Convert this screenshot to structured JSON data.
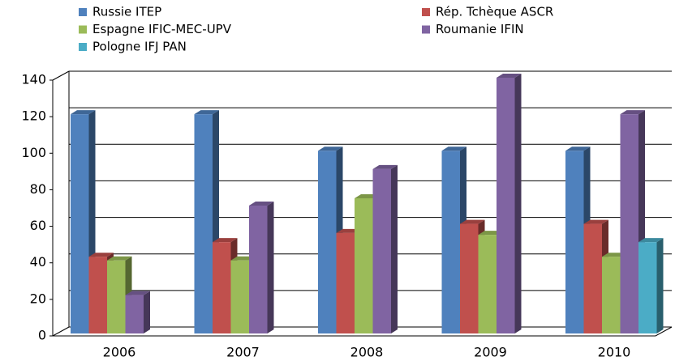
{
  "chart_data": {
    "type": "bar3d",
    "categories": [
      "2006",
      "2007",
      "2008",
      "2009",
      "2010"
    ],
    "series": [
      {
        "name": "Russie ITEP",
        "color": "#4f81bd",
        "values": [
          120,
          120,
          100,
          100,
          100
        ]
      },
      {
        "name": "Rép. Tchèque ASCR",
        "color": "#c0504d",
        "values": [
          42,
          50,
          55,
          60,
          60
        ]
      },
      {
        "name": "Espagne IFIC-MEC-UPV",
        "color": "#9bbb59",
        "values": [
          40,
          40,
          74,
          54,
          42
        ]
      },
      {
        "name": "Roumanie IFIN",
        "color": "#8064a2",
        "values": [
          21,
          70,
          90,
          140,
          120
        ]
      },
      {
        "name": "Pologne IFJ PAN",
        "color": "#4bacc6",
        "values": [
          null,
          null,
          null,
          null,
          50
        ]
      }
    ],
    "ylim": [
      0,
      140
    ],
    "yticks": [
      0,
      20,
      40,
      60,
      80,
      100,
      120,
      140
    ],
    "grid": true
  }
}
